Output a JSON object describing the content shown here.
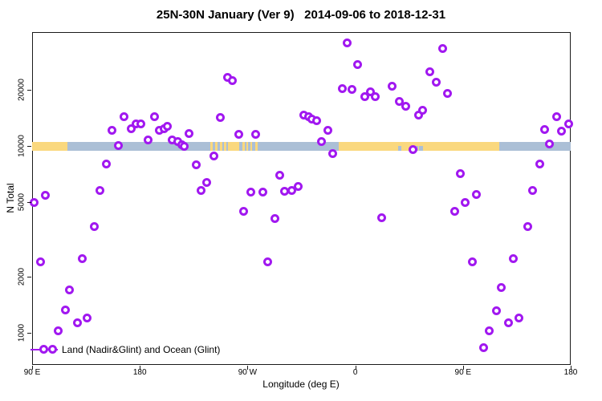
{
  "chart_data": {
    "type": "scatter",
    "title": "25N-30N January (Ver 9)   2014-09-06 to 2018-12-31",
    "xlabel": "Longitude (deg E)",
    "ylabel": "N Total",
    "x_axis": {
      "range_deg": [
        0,
        450
      ],
      "ticks": [
        {
          "deg": 0,
          "label": "90 E"
        },
        {
          "deg": 90,
          "label": "180"
        },
        {
          "deg": 180,
          "label": "90 W"
        },
        {
          "deg": 270,
          "label": "0"
        },
        {
          "deg": 360,
          "label": "90 E"
        },
        {
          "deg": 450,
          "label": "180"
        }
      ]
    },
    "y_axis": {
      "scale": "log",
      "range": [
        673,
        40740
      ],
      "ticks": [
        {
          "value": 1000,
          "label": "1000"
        },
        {
          "value": 2000,
          "label": "2000"
        },
        {
          "value": 5000,
          "label": "5000"
        },
        {
          "value": 10000,
          "label": "10000"
        },
        {
          "value": 20000,
          "label": "20000"
        }
      ]
    },
    "legend": {
      "label": "Land (Nadir&Glint) and Ocean (Glint)"
    },
    "colors": {
      "marker": "#a118f0",
      "land": "#fad87e",
      "ocean": "#abbfd6",
      "axis": "#1a1a1a"
    },
    "band": {
      "value_range": [
        9400,
        10500
      ],
      "land_segments_deg": [
        [
          0,
          29.5
        ],
        [
          149,
          151
        ],
        [
          153,
          155
        ],
        [
          157,
          159
        ],
        [
          160.5,
          162.5
        ],
        [
          163.5,
          173
        ],
        [
          176,
          177.5
        ],
        [
          179,
          180.5
        ],
        [
          182.5,
          184
        ],
        [
          186.5,
          188.5
        ],
        [
          256.5,
          390.5
        ]
      ],
      "ocean_notches_deg": [
        [
          305.5,
          308.5
        ],
        [
          319.5,
          322.5
        ],
        [
          323.5,
          326.5
        ]
      ]
    },
    "points": [
      [
        2,
        4960
      ],
      [
        7,
        2400
      ],
      [
        11,
        5430
      ],
      [
        22,
        1020
      ],
      [
        28,
        1320
      ],
      [
        31,
        1700
      ],
      [
        38,
        1130
      ],
      [
        42,
        2500
      ],
      [
        46,
        1200
      ],
      [
        52,
        3700
      ],
      [
        57,
        5800
      ],
      [
        62,
        8000
      ],
      [
        67,
        12100
      ],
      [
        72,
        10100
      ],
      [
        77,
        14300
      ],
      [
        83,
        12400
      ],
      [
        87,
        13100
      ],
      [
        91,
        13100
      ],
      [
        97,
        10800
      ],
      [
        102,
        14300
      ],
      [
        106,
        12100
      ],
      [
        110,
        12400
      ],
      [
        113,
        12800
      ],
      [
        117,
        10800
      ],
      [
        122,
        10600
      ],
      [
        125,
        10200
      ],
      [
        127,
        10000
      ],
      [
        131,
        11700
      ],
      [
        137,
        7900
      ],
      [
        141,
        5800
      ],
      [
        146,
        6400
      ],
      [
        152,
        8800
      ],
      [
        157,
        14200
      ],
      [
        163,
        23400
      ],
      [
        167,
        22500
      ],
      [
        173,
        11500
      ],
      [
        177,
        4450
      ],
      [
        183,
        5650
      ],
      [
        187,
        11600
      ],
      [
        193,
        5640
      ],
      [
        197,
        2400
      ],
      [
        203,
        4100
      ],
      [
        207,
        7000
      ],
      [
        211,
        5700
      ],
      [
        217,
        5800
      ],
      [
        222,
        6100
      ],
      [
        227,
        14600
      ],
      [
        231,
        14300
      ],
      [
        234,
        13900
      ],
      [
        238,
        13700
      ],
      [
        242,
        10600
      ],
      [
        247,
        12100
      ],
      [
        251,
        9100
      ],
      [
        259,
        20200
      ],
      [
        263,
        35500
      ],
      [
        267,
        20000
      ],
      [
        272,
        27200
      ],
      [
        278,
        18300
      ],
      [
        283,
        19600
      ],
      [
        287,
        18300
      ],
      [
        292,
        4150
      ],
      [
        301,
        21000
      ],
      [
        307,
        17400
      ],
      [
        312,
        16400
      ],
      [
        318,
        9600
      ],
      [
        323,
        14600
      ],
      [
        326,
        15500
      ],
      [
        332,
        24900
      ],
      [
        338,
        21900
      ],
      [
        343,
        33400
      ],
      [
        347,
        19200
      ],
      [
        353,
        4450
      ],
      [
        358,
        7100
      ],
      [
        362,
        5000
      ],
      [
        368,
        2400
      ],
      [
        371,
        5500
      ],
      [
        377,
        830
      ],
      [
        382,
        1020
      ],
      [
        388,
        1310
      ],
      [
        392,
        1740
      ],
      [
        398,
        1130
      ],
      [
        402,
        2500
      ],
      [
        407,
        1200
      ],
      [
        414,
        3700
      ],
      [
        418,
        5800
      ],
      [
        424,
        8000
      ],
      [
        428,
        12200
      ],
      [
        432,
        10300
      ],
      [
        438,
        14400
      ],
      [
        442,
        12000
      ],
      [
        448,
        13100
      ]
    ]
  }
}
